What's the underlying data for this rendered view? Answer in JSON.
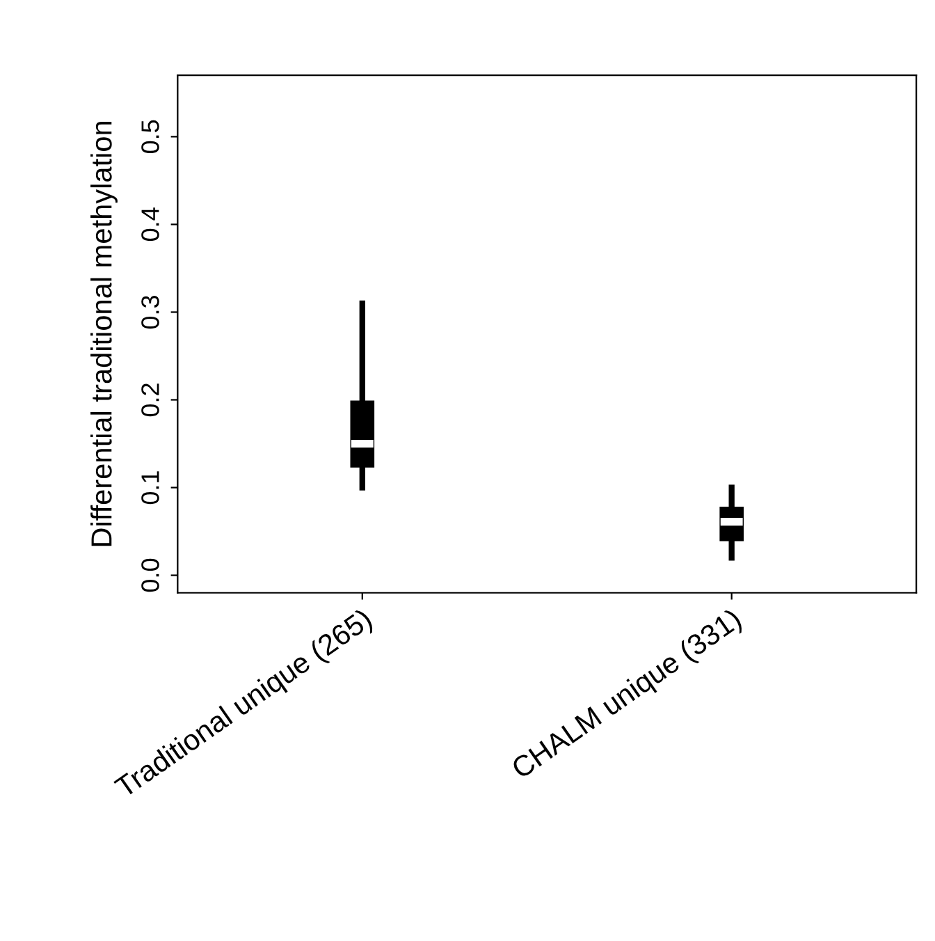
{
  "chart_data": {
    "type": "box",
    "ylabel": "Differential traditional methylation",
    "categories": [
      "Traditional unique (265)",
      "CHALM unique (331)"
    ],
    "boxes": [
      {
        "low": 0.1,
        "q1": 0.124,
        "median": 0.15,
        "q3": 0.198,
        "high": 0.31
      },
      {
        "low": 0.02,
        "q1": 0.04,
        "median": 0.061,
        "q3": 0.077,
        "high": 0.1
      }
    ],
    "ylim": [
      -0.02,
      0.57
    ],
    "yticks": [
      {
        "value": 0,
        "label": "0.0"
      },
      0.1,
      0.2,
      0.3,
      0.4,
      0.5
    ],
    "grid": false
  }
}
